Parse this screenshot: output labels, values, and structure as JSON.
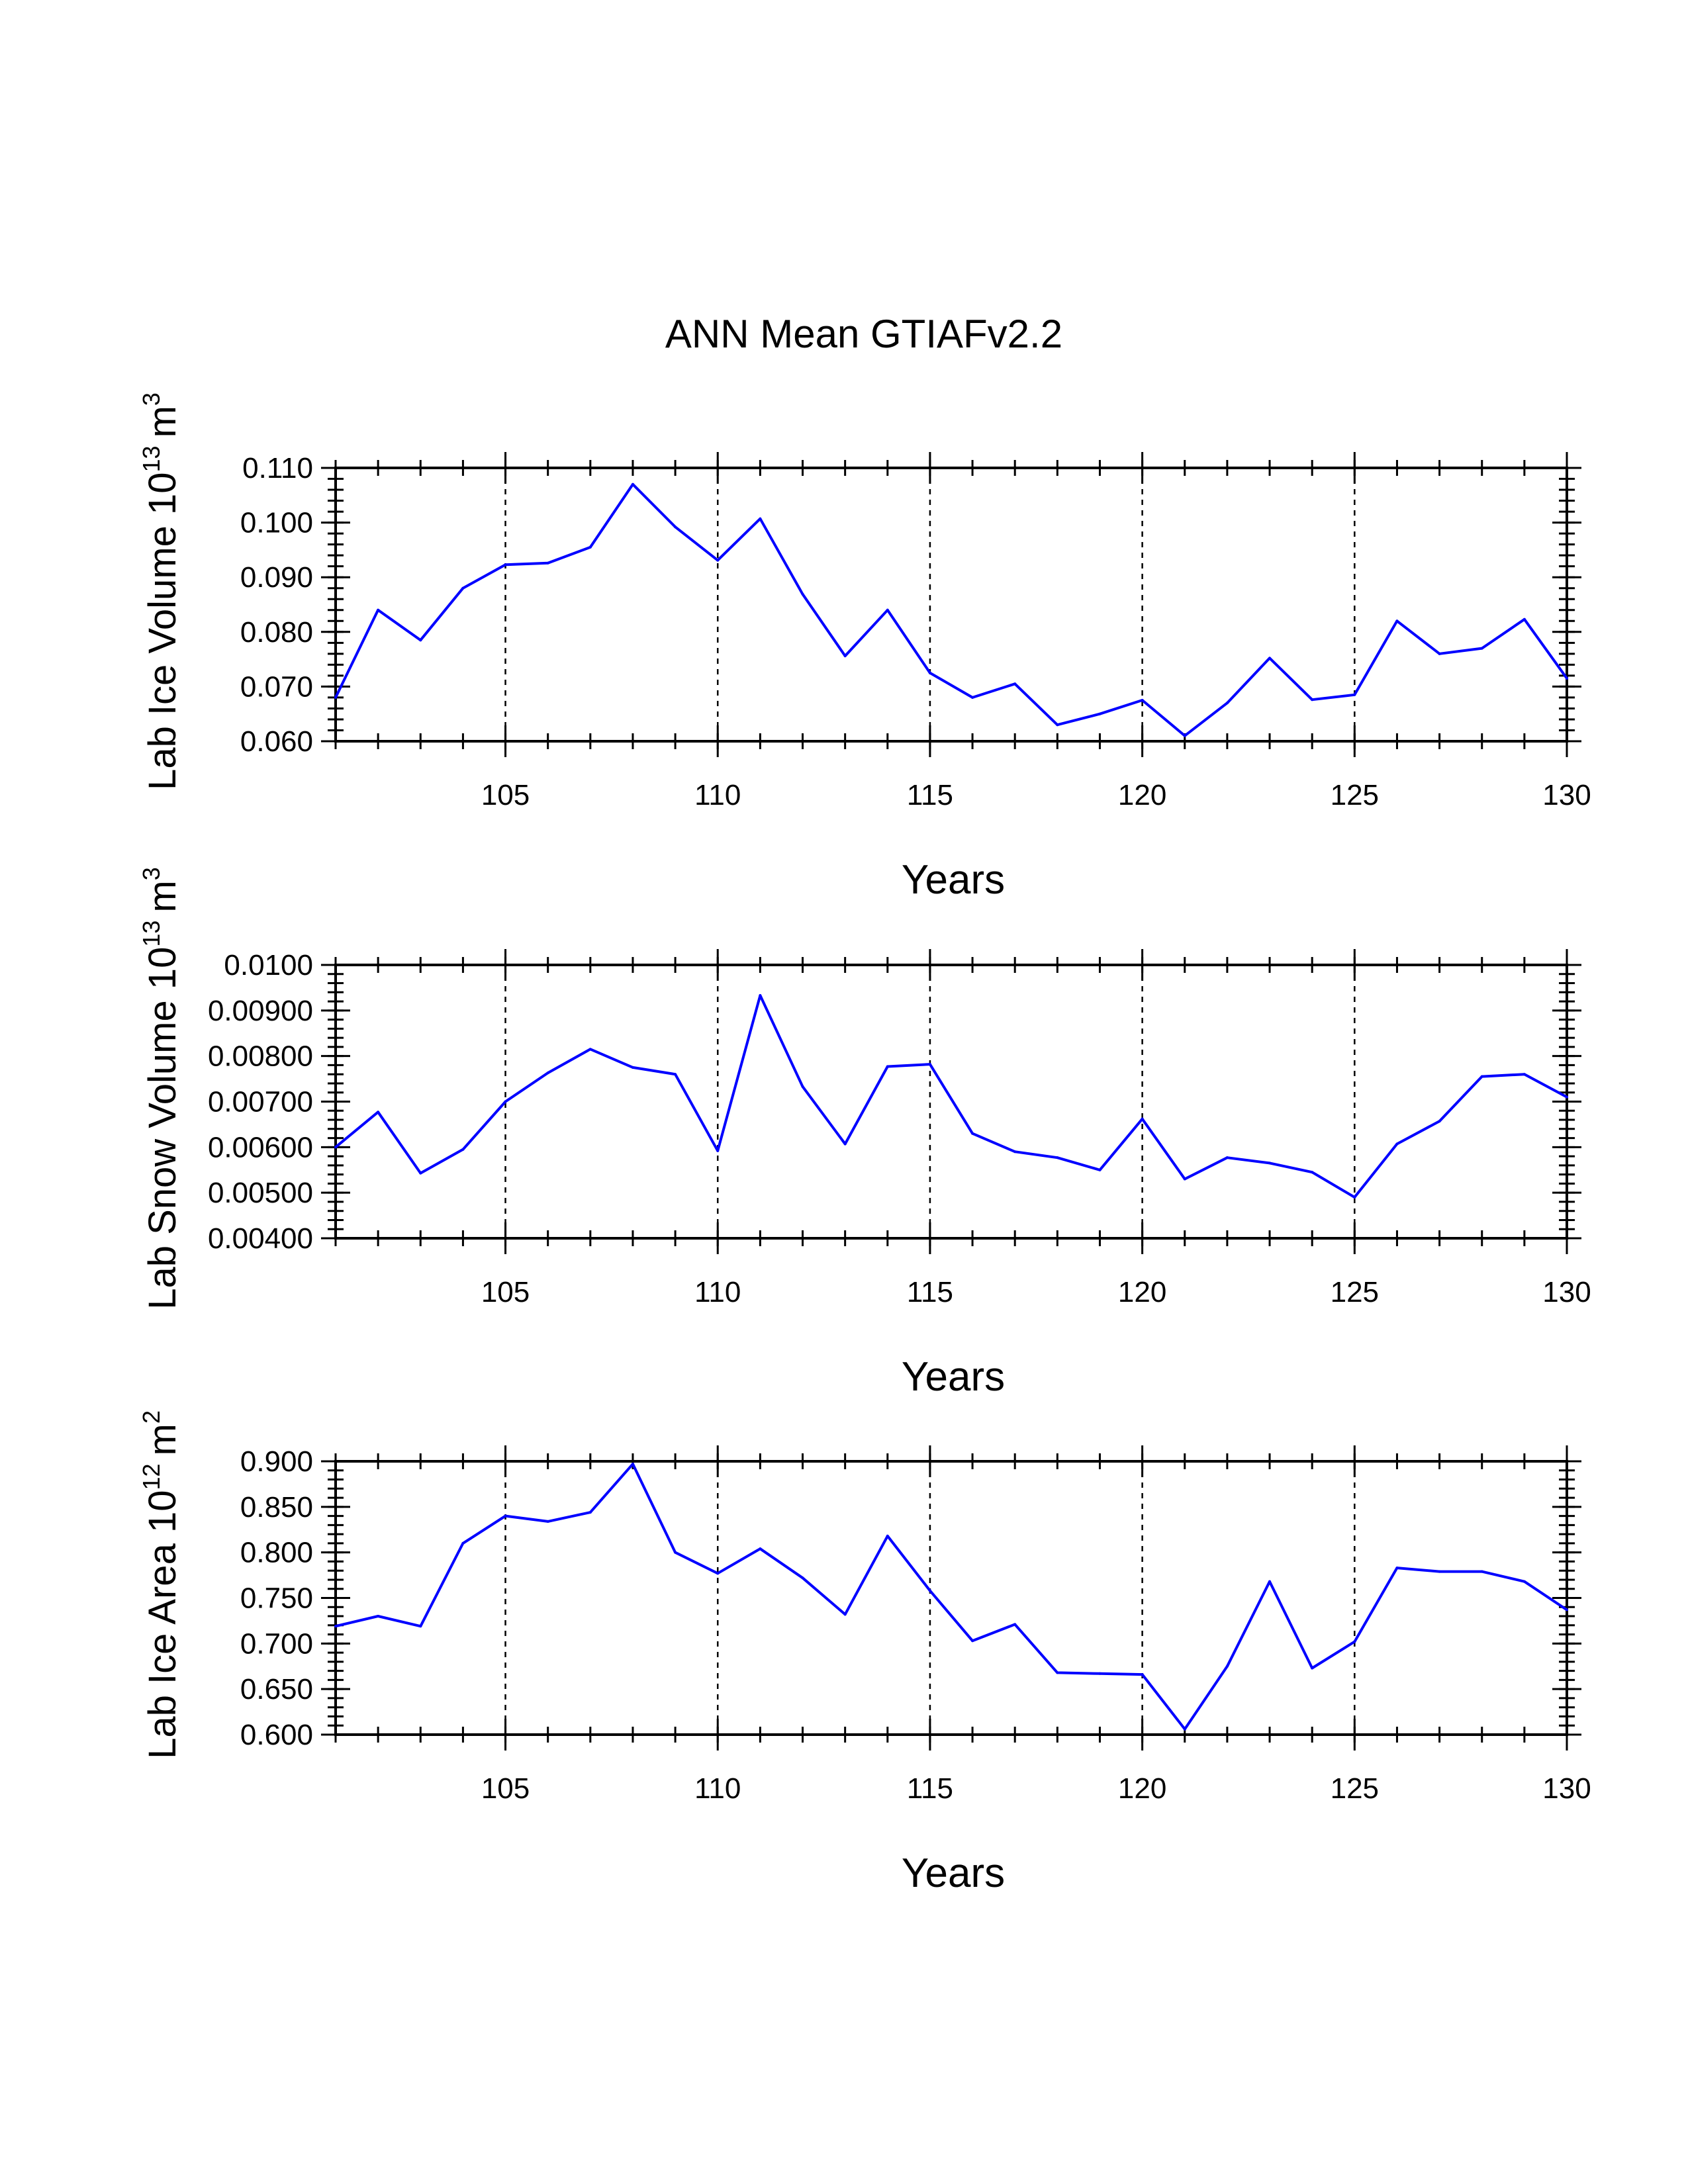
{
  "figure": {
    "title": "ANN Mean GTIAFv2.2",
    "line_color": "#0000ff"
  },
  "chart_data": [
    {
      "type": "line",
      "title": "",
      "xlabel": "Years",
      "ylabel": "Lab Ice Volume 10",
      "ylabel_exponent": "13",
      "ylabel_unit": "m",
      "ylabel_unit_exponent": "3",
      "xlim": [
        101,
        130
      ],
      "ylim": [
        0.06,
        0.11
      ],
      "yticks": [
        0.06,
        0.07,
        0.08,
        0.09,
        0.1,
        0.11
      ],
      "ytick_labels": [
        "0.060",
        "0.070",
        "0.080",
        "0.090",
        "0.100",
        "0.110"
      ],
      "yminor_step": 0.002,
      "xticks": [
        105,
        110,
        115,
        120,
        125,
        130
      ],
      "xtick_labels": [
        "105",
        "110",
        "115",
        "120",
        "125",
        "130"
      ],
      "vgrid_at": [
        105,
        110,
        115,
        120,
        125
      ],
      "series": [
        {
          "color": "#0000ff",
          "x": [
            101,
            102,
            103,
            104,
            105,
            106,
            107,
            108,
            109,
            110,
            111,
            112,
            113,
            114,
            115,
            116,
            117,
            118,
            119,
            120,
            121,
            122,
            123,
            124,
            125,
            126,
            127,
            128,
            129,
            130
          ],
          "y": [
            0.068,
            0.084,
            0.0785,
            0.088,
            0.0923,
            0.0926,
            0.0955,
            0.107,
            0.0992,
            0.0931,
            0.1007,
            0.0869,
            0.0756,
            0.084,
            0.0725,
            0.068,
            0.0705,
            0.063,
            0.065,
            0.0675,
            0.061,
            0.067,
            0.0752,
            0.0676,
            0.0685,
            0.082,
            0.076,
            0.077,
            0.0823,
            0.0715
          ]
        }
      ]
    },
    {
      "type": "line",
      "title": "",
      "xlabel": "Years",
      "ylabel": "Lab Snow Volume 10",
      "ylabel_exponent": "13",
      "ylabel_unit": "m",
      "ylabel_unit_exponent": "3",
      "xlim": [
        101,
        130
      ],
      "ylim": [
        0.004,
        0.01
      ],
      "yticks": [
        0.004,
        0.005,
        0.006,
        0.007,
        0.008,
        0.009,
        0.01
      ],
      "ytick_labels": [
        "0.00400",
        "0.00500",
        "0.00600",
        "0.00700",
        "0.00800",
        "0.00900",
        "0.0100"
      ],
      "yminor_step": 0.0002,
      "xticks": [
        105,
        110,
        115,
        120,
        125,
        130
      ],
      "xtick_labels": [
        "105",
        "110",
        "115",
        "120",
        "125",
        "130"
      ],
      "vgrid_at": [
        105,
        110,
        115,
        120,
        125
      ],
      "series": [
        {
          "color": "#0000ff",
          "x": [
            101,
            102,
            103,
            104,
            105,
            106,
            107,
            108,
            109,
            110,
            111,
            112,
            113,
            114,
            115,
            116,
            117,
            118,
            119,
            120,
            121,
            122,
            123,
            124,
            125,
            126,
            127,
            128,
            129,
            130
          ],
          "y": [
            0.006,
            0.00677,
            0.00543,
            0.00595,
            0.007,
            0.00763,
            0.00815,
            0.00775,
            0.0076,
            0.00592,
            0.00933,
            0.00733,
            0.00607,
            0.00777,
            0.00782,
            0.0063,
            0.0059,
            0.00577,
            0.0055,
            0.00662,
            0.0053,
            0.00577,
            0.00565,
            0.00545,
            0.0049,
            0.00607,
            0.00657,
            0.00755,
            0.0076,
            0.0071
          ]
        }
      ]
    },
    {
      "type": "line",
      "title": "",
      "xlabel": "Years",
      "ylabel": "Lab Ice Area 10",
      "ylabel_exponent": "12",
      "ylabel_unit": "m",
      "ylabel_unit_exponent": "2",
      "xlim": [
        101,
        130
      ],
      "ylim": [
        0.6,
        0.9
      ],
      "yticks": [
        0.6,
        0.65,
        0.7,
        0.75,
        0.8,
        0.85,
        0.9
      ],
      "ytick_labels": [
        "0.600",
        "0.650",
        "0.700",
        "0.750",
        "0.800",
        "0.850",
        "0.900"
      ],
      "yminor_step": 0.01,
      "xticks": [
        105,
        110,
        115,
        120,
        125,
        130
      ],
      "xtick_labels": [
        "105",
        "110",
        "115",
        "120",
        "125",
        "130"
      ],
      "vgrid_at": [
        105,
        110,
        115,
        120,
        125
      ],
      "series": [
        {
          "color": "#0000ff",
          "x": [
            101,
            102,
            103,
            104,
            105,
            106,
            107,
            108,
            109,
            110,
            111,
            112,
            113,
            114,
            115,
            116,
            117,
            118,
            119,
            120,
            121,
            122,
            123,
            124,
            125,
            126,
            127,
            128,
            129,
            130
          ],
          "y": [
            0.719,
            0.73,
            0.719,
            0.81,
            0.84,
            0.834,
            0.844,
            0.897,
            0.8,
            0.777,
            0.804,
            0.772,
            0.732,
            0.818,
            0.758,
            0.703,
            0.721,
            0.668,
            0.667,
            0.666,
            0.606,
            0.675,
            0.768,
            0.673,
            0.702,
            0.783,
            0.779,
            0.779,
            0.768,
            0.737
          ]
        }
      ]
    }
  ]
}
